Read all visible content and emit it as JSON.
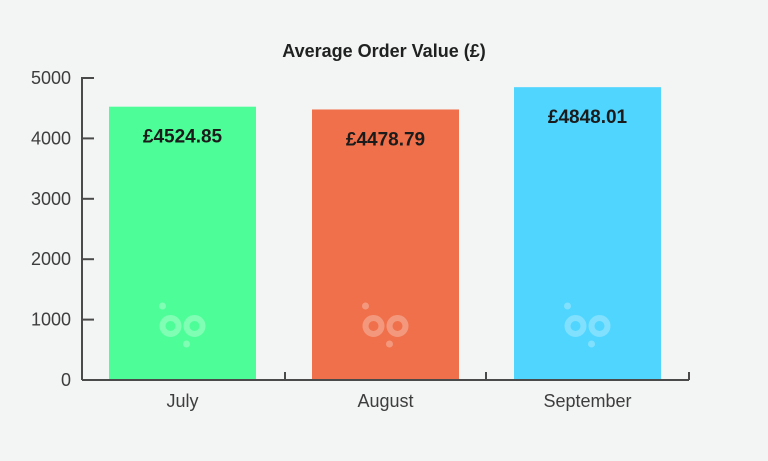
{
  "chart_data": {
    "type": "bar",
    "title": "Average Order Value (£)",
    "xlabel": "",
    "ylabel": "",
    "categories": [
      "July",
      "August",
      "September"
    ],
    "values": [
      4524.85,
      4478.79,
      4848.01
    ],
    "data_labels": [
      "£4524.85",
      "£4478.79",
      "£4848.01"
    ],
    "colors": [
      "#4dfe98",
      "#ef704b",
      "#4fd5fe"
    ],
    "ylim": [
      0,
      5000
    ],
    "yticks": [
      0,
      1000,
      2000,
      3000,
      4000,
      5000
    ],
    "grid": false,
    "legend": "none",
    "watermark_icon": "bp-logo-icon"
  }
}
